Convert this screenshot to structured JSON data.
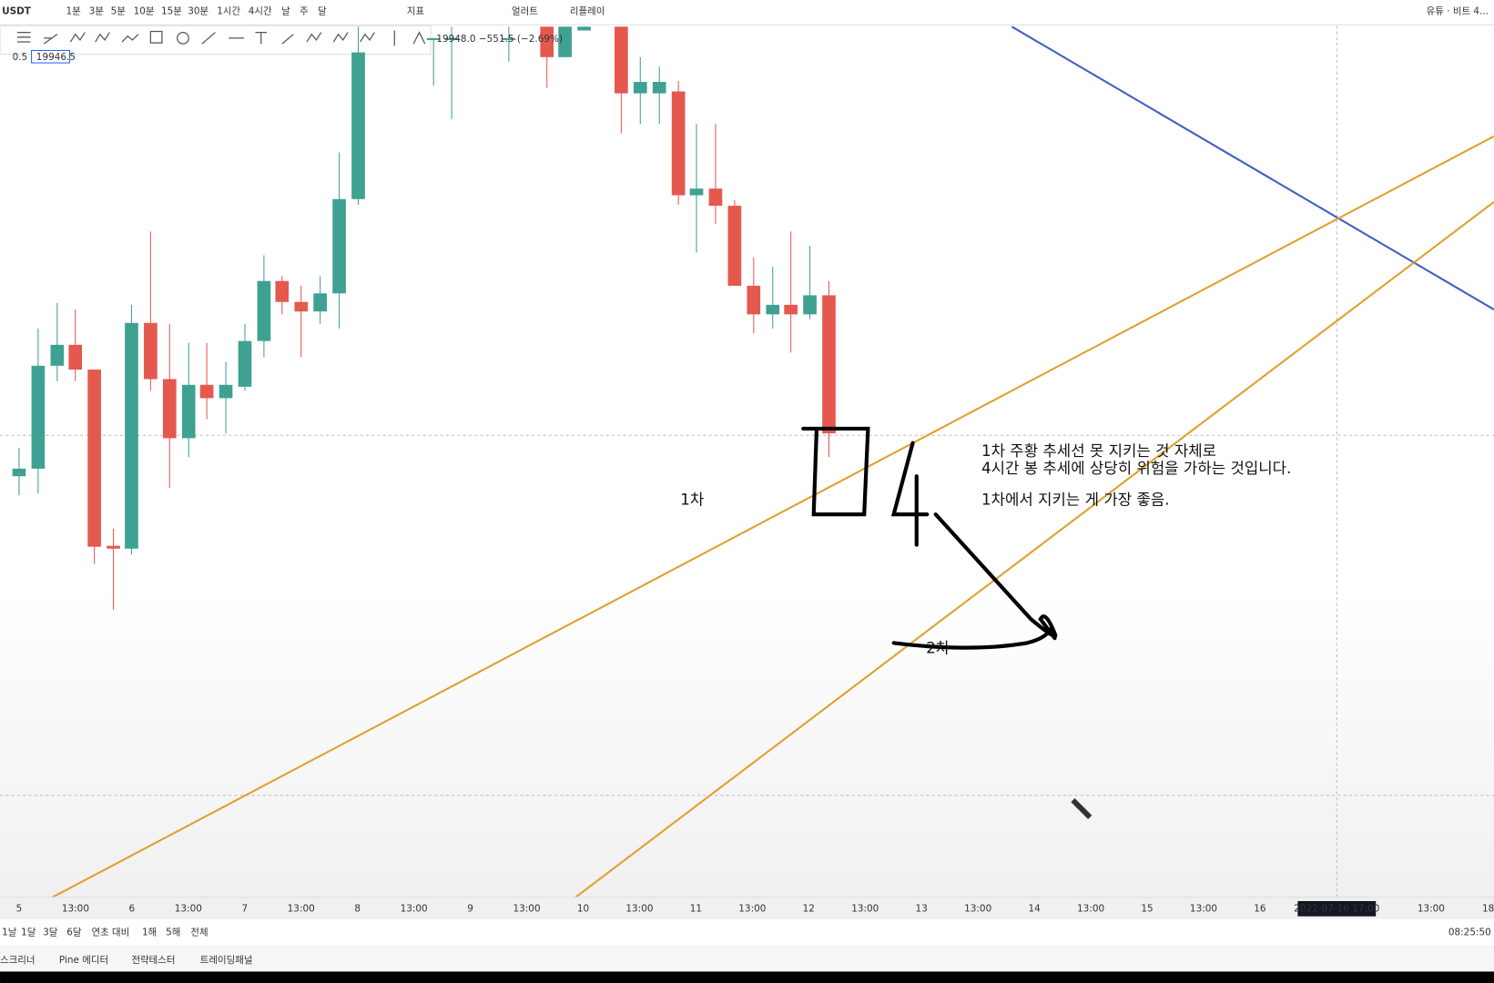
{
  "toolbar": {
    "symbol": "USDT",
    "intervals": [
      "1분",
      "3분",
      "5분",
      "10분",
      "15분",
      "30분",
      "1시간",
      "4시간",
      "날",
      "주",
      "달"
    ],
    "indicators": "지표",
    "alert": "얼러트",
    "replay": "리플레이",
    "publish": "유튜 · 비트 4..."
  },
  "legend": {
    "change": "19948.0 −551.5 (−2.69%)",
    "step": "0.5",
    "price": "19946.5"
  },
  "annotations": {
    "note_line1": "1차 주황 추세선 못 지키는 것 자체로",
    "note_line2": "4시간 봉 추세에 상당히 위험을 가하는 것입니다.",
    "note_line3": "1차에서 지키는 게 가장 좋음.",
    "first": "1차",
    "second": "2차"
  },
  "x_axis": {
    "labels": [
      "5",
      "13:00",
      "6",
      "13:00",
      "7",
      "13:00",
      "8",
      "13:00",
      "9",
      "13:00",
      "10",
      "13:00",
      "11",
      "13:00",
      "12",
      "13:00",
      "13",
      "13:00",
      "14",
      "13:00",
      "15",
      "13:00",
      "16",
      "13:00",
      "18"
    ],
    "crosshair": "2022-07-16   17:00"
  },
  "range_buttons": [
    "1날",
    "1달",
    "3달",
    "6달",
    "연초 대비",
    "1해",
    "5해",
    "전체"
  ],
  "bottom_tabs": [
    "스크리너",
    "Pine 에디터",
    "전략테스터",
    "트레이딩패널"
  ],
  "clock": "08:25:50"
}
